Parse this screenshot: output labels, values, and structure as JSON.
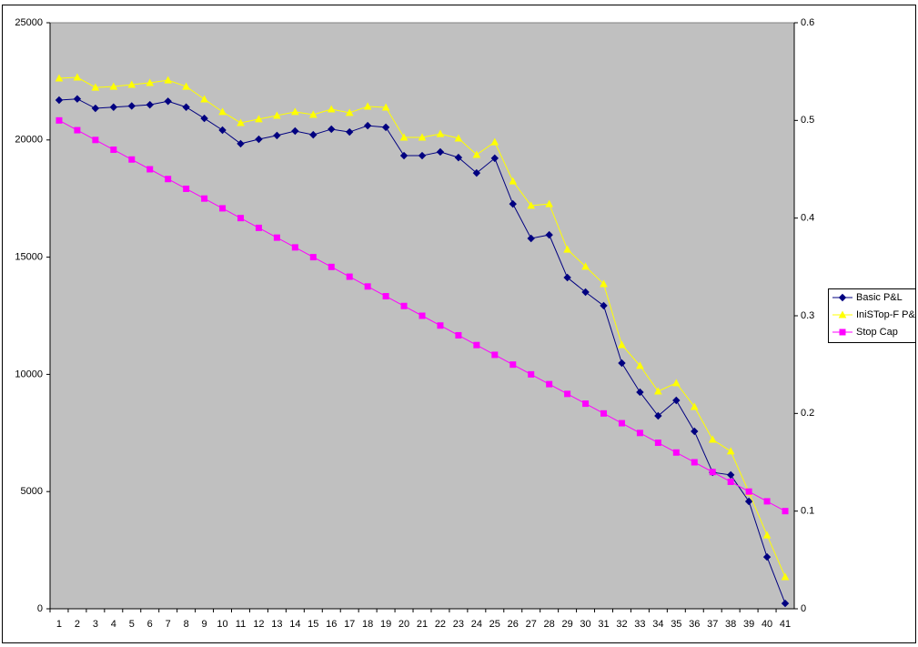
{
  "chart_data": {
    "type": "line",
    "categories": [
      1,
      2,
      3,
      4,
      5,
      6,
      7,
      8,
      9,
      10,
      11,
      12,
      13,
      14,
      15,
      16,
      17,
      18,
      19,
      20,
      21,
      22,
      23,
      24,
      25,
      26,
      27,
      28,
      29,
      30,
      31,
      32,
      33,
      34,
      35,
      36,
      37,
      38,
      39,
      40,
      41
    ],
    "series": [
      {
        "name": "Basic P&L",
        "color": "#000080",
        "marker": "diamond",
        "values": [
          21700,
          21750,
          21350,
          21400,
          21450,
          21500,
          21650,
          21400,
          20920,
          20420,
          19840,
          20030,
          20190,
          20380,
          20220,
          20460,
          20340,
          20610,
          20540,
          19330,
          19330,
          19490,
          19250,
          18590,
          19220,
          17270,
          15800,
          15950,
          14130,
          13510,
          12930,
          10480,
          9240,
          8230,
          8890,
          7570,
          5820,
          5710,
          4580,
          2210,
          230
        ]
      },
      {
        "name": "IniSTop-F P&",
        "color": "#ffff00",
        "marker": "triangle",
        "values": [
          22630,
          22670,
          22240,
          22280,
          22360,
          22440,
          22550,
          22280,
          21740,
          21200,
          20730,
          20890,
          21040,
          21200,
          21080,
          21310,
          21160,
          21430,
          21390,
          20110,
          20110,
          20260,
          20070,
          19370,
          19910,
          18240,
          17200,
          17270,
          15330,
          14600,
          13860,
          11260,
          10370,
          9280,
          9630,
          8620,
          7220,
          6720,
          4970,
          3140,
          1360
        ]
      },
      {
        "name": "Stop Cap",
        "color": "#ff00ff",
        "marker": "square",
        "axis": "y2",
        "values": [
          0.5,
          0.49,
          0.48,
          0.47,
          0.46,
          0.45,
          0.44,
          0.43,
          0.42,
          0.41,
          0.4,
          0.39,
          0.38,
          0.37,
          0.36,
          0.35,
          0.34,
          0.33,
          0.32,
          0.31,
          0.3,
          0.29,
          0.28,
          0.27,
          0.26,
          0.25,
          0.24,
          0.23,
          0.22,
          0.21,
          0.2,
          0.19,
          0.18,
          0.17,
          0.16,
          0.15,
          0.14,
          0.13,
          0.12,
          0.11,
          0.1
        ]
      }
    ],
    "ylim": [
      0,
      25000
    ],
    "yticks": [
      0,
      5000,
      10000,
      15000,
      20000,
      25000
    ],
    "y2lim": [
      0,
      0.6
    ],
    "y2ticks": [
      0,
      0.1,
      0.2,
      0.3,
      0.4,
      0.5,
      0.6
    ],
    "plot_background": "#c0c0c0",
    "legend": "right"
  }
}
